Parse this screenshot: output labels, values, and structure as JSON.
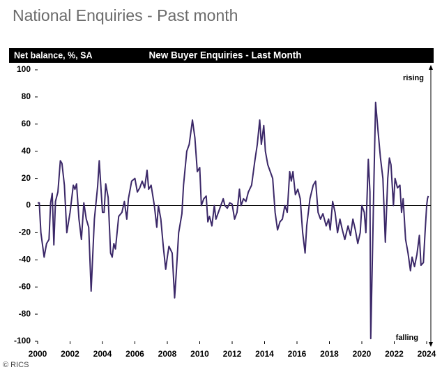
{
  "header": {
    "title": "National Enquiries - Past month"
  },
  "source": "© RICS",
  "chart_data": {
    "type": "line",
    "title": "New Buyer Enquiries - Last Month",
    "ylabel": "Net balance, %, SA",
    "annotations": [
      "rising",
      "falling"
    ],
    "x": [
      2000.0,
      2000.1,
      2000.2,
      2000.4,
      2000.55,
      2000.7,
      2000.8,
      2000.9,
      2001.0,
      2001.1,
      2001.25,
      2001.4,
      2001.5,
      2001.65,
      2001.8,
      2002.0,
      2002.2,
      2002.3,
      2002.4,
      2002.55,
      2002.7,
      2002.85,
      2003.0,
      2003.15,
      2003.3,
      2003.5,
      2003.7,
      2003.8,
      2004.0,
      2004.1,
      2004.2,
      2004.35,
      2004.5,
      2004.6,
      2004.7,
      2004.8,
      2005.0,
      2005.2,
      2005.35,
      2005.5,
      2005.6,
      2005.8,
      2006.0,
      2006.15,
      2006.3,
      2006.45,
      2006.6,
      2006.75,
      2006.85,
      2007.0,
      2007.2,
      2007.35,
      2007.45,
      2007.6,
      2007.75,
      2007.9,
      2008.0,
      2008.1,
      2008.3,
      2008.45,
      2008.55,
      2008.7,
      2008.9,
      2009.0,
      2009.2,
      2009.35,
      2009.55,
      2009.7,
      2009.85,
      2010.0,
      2010.1,
      2010.25,
      2010.4,
      2010.5,
      2010.6,
      2010.75,
      2010.9,
      2011.0,
      2011.15,
      2011.3,
      2011.45,
      2011.55,
      2011.7,
      2011.85,
      2012.0,
      2012.15,
      2012.3,
      2012.45,
      2012.55,
      2012.7,
      2012.85,
      2013.0,
      2013.2,
      2013.4,
      2013.55,
      2013.7,
      2013.8,
      2013.95,
      2014.05,
      2014.2,
      2014.35,
      2014.5,
      2014.65,
      2014.8,
      2014.95,
      2015.1,
      2015.25,
      2015.4,
      2015.55,
      2015.65,
      2015.75,
      2015.9,
      2016.05,
      2016.2,
      2016.35,
      2016.5,
      2016.6,
      2016.8,
      2017.0,
      2017.15,
      2017.3,
      2017.45,
      2017.6,
      2017.8,
      2017.95,
      2018.05,
      2018.2,
      2018.35,
      2018.5,
      2018.65,
      2018.8,
      2018.95,
      2019.15,
      2019.3,
      2019.45,
      2019.6,
      2019.75,
      2019.9,
      2020.0,
      2020.15,
      2020.25,
      2020.4,
      2020.5,
      2020.55,
      2020.65,
      2020.75,
      2020.85,
      2021.0,
      2021.15,
      2021.3,
      2021.45,
      2021.6,
      2021.7,
      2021.8,
      2021.95,
      2022.05,
      2022.2,
      2022.35,
      2022.45,
      2022.55,
      2022.7,
      2022.85,
      2023.0,
      2023.1,
      2023.25,
      2023.4,
      2023.55,
      2023.65,
      2023.8,
      2023.9,
      2024.0,
      2024.05,
      2024.1
    ],
    "series": [
      {
        "color": "#3b2868",
        "values": [
          2,
          2,
          -20,
          -38,
          -28,
          -25,
          2,
          9,
          -29,
          3,
          10,
          33,
          31,
          15,
          -20,
          -5,
          15,
          12,
          16,
          -10,
          -25,
          2,
          -10,
          -16,
          -63,
          -10,
          14,
          33,
          -5,
          -5,
          16,
          6,
          -35,
          -38,
          -28,
          -32,
          -8,
          -5,
          3,
          -10,
          5,
          18,
          20,
          10,
          13,
          18,
          13,
          26,
          12,
          15,
          0,
          -16,
          0,
          -10,
          -30,
          -47,
          -38,
          -30,
          -35,
          -68,
          -50,
          -20,
          -6,
          15,
          40,
          45,
          63,
          50,
          25,
          28,
          0,
          5,
          7,
          -12,
          -8,
          -15,
          0,
          -10,
          -5,
          0,
          5,
          0,
          -2,
          2,
          1,
          -10,
          -5,
          12,
          0,
          5,
          3,
          10,
          15,
          33,
          45,
          63,
          45,
          59,
          40,
          30,
          25,
          20,
          -5,
          -18,
          -12,
          -10,
          0,
          -5,
          25,
          18,
          25,
          8,
          12,
          5,
          -20,
          -35,
          -15,
          5,
          15,
          18,
          -5,
          -10,
          -6,
          -15,
          -10,
          -18,
          3,
          -5,
          -20,
          -10,
          -18,
          -25,
          -15,
          -22,
          -10,
          -18,
          -28,
          -20,
          0,
          -5,
          -20,
          34,
          10,
          -98,
          -40,
          20,
          76,
          55,
          35,
          20,
          -27,
          20,
          35,
          30,
          0,
          20,
          13,
          15,
          -5,
          5,
          -25,
          -35,
          -48,
          -38,
          -45,
          -36,
          -22,
          -44,
          -42,
          -20,
          0,
          5,
          7
        ]
      }
    ],
    "xlim": [
      2000,
      2024
    ],
    "xticks": [
      2000,
      2002,
      2004,
      2006,
      2008,
      2010,
      2012,
      2014,
      2016,
      2018,
      2020,
      2022,
      2024
    ],
    "ylim": [
      -100,
      100
    ],
    "yticks": [
      -100,
      -80,
      -60,
      -40,
      -20,
      0,
      20,
      40,
      60,
      80,
      100
    ]
  }
}
